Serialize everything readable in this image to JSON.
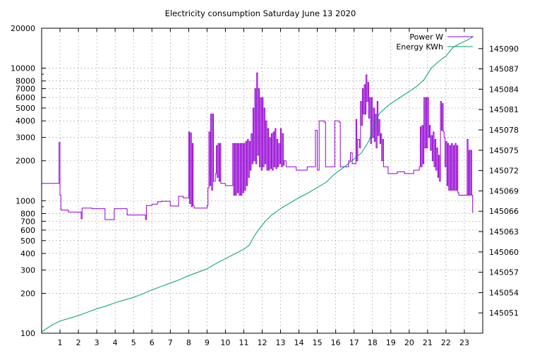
{
  "chart_data": {
    "type": "line",
    "title": "Electricity consumption Saturday June 13 2020",
    "xlabel": "",
    "ylabel": "",
    "y2label": "",
    "xlim": [
      0,
      24
    ],
    "ylim": [
      100,
      20000
    ],
    "y_scale": "log",
    "y2lim": [
      145048,
      145093
    ],
    "grid": true,
    "legend_position": "top-right",
    "x_ticks": [
      1,
      2,
      3,
      4,
      5,
      6,
      7,
      8,
      9,
      10,
      11,
      12,
      13,
      14,
      15,
      16,
      17,
      18,
      19,
      20,
      21,
      22,
      23
    ],
    "y_ticks": [
      {
        "value": 100,
        "label": "100"
      },
      {
        "value": 200,
        "label": "200"
      },
      {
        "value": 300,
        "label": "300"
      },
      {
        "value": 400,
        "label": "400"
      },
      {
        "value": 500,
        "label": "500"
      },
      {
        "value": 600,
        "label": "600"
      },
      {
        "value": 700,
        "label": "700"
      },
      {
        "value": 800,
        "label": "800"
      },
      {
        "value": 1000,
        "label": "1000"
      },
      {
        "value": 2000,
        "label": "2000"
      },
      {
        "value": 3000,
        "label": "3000"
      },
      {
        "value": 4000,
        "label": "4000"
      },
      {
        "value": 5000,
        "label": "5000"
      },
      {
        "value": 6000,
        "label": "6000"
      },
      {
        "value": 7000,
        "label": "7000"
      },
      {
        "value": 8000,
        "label": "8000"
      },
      {
        "value": 10000,
        "label": "10000"
      },
      {
        "value": 20000,
        "label": "20000"
      }
    ],
    "y2_ticks": [
      145051,
      145054,
      145057,
      145060,
      145063,
      145066,
      145069,
      145072,
      145075,
      145078,
      145081,
      145084,
      145087,
      145090
    ],
    "series": [
      {
        "name": "Power W",
        "axis": "y",
        "color": "#9400d3",
        "points": [
          [
            0.0,
            1350
          ],
          [
            0.9,
            1350
          ],
          [
            0.95,
            2750
          ],
          [
            1.0,
            1100
          ],
          [
            1.05,
            850
          ],
          [
            1.4,
            850
          ],
          [
            1.45,
            820
          ],
          [
            2.1,
            820
          ],
          [
            2.15,
            730
          ],
          [
            2.2,
            880
          ],
          [
            2.7,
            880
          ],
          [
            2.75,
            870
          ],
          [
            3.4,
            870
          ],
          [
            3.45,
            720
          ],
          [
            3.9,
            720
          ],
          [
            3.95,
            870
          ],
          [
            4.6,
            870
          ],
          [
            4.65,
            780
          ],
          [
            5.6,
            780
          ],
          [
            5.65,
            720
          ],
          [
            5.7,
            920
          ],
          [
            6.0,
            940
          ],
          [
            6.3,
            980
          ],
          [
            6.5,
            990
          ],
          [
            6.8,
            990
          ],
          [
            7.0,
            910
          ],
          [
            7.4,
            910
          ],
          [
            7.45,
            1080
          ],
          [
            7.7,
            1050
          ],
          [
            7.9,
            1050
          ],
          [
            8.0,
            3300
          ],
          [
            8.05,
            950
          ],
          [
            8.1,
            3250
          ],
          [
            8.15,
            900
          ],
          [
            8.2,
            2700
          ],
          [
            8.25,
            920
          ],
          [
            8.3,
            880
          ],
          [
            8.9,
            880
          ],
          [
            9.0,
            920
          ],
          [
            9.05,
            1250
          ],
          [
            9.1,
            3300
          ],
          [
            9.15,
            1300
          ],
          [
            9.2,
            4500
          ],
          [
            9.25,
            1200
          ],
          [
            9.3,
            4500
          ],
          [
            9.35,
            1400
          ],
          [
            9.45,
            1600
          ],
          [
            9.5,
            2600
          ],
          [
            9.55,
            1500
          ],
          [
            9.6,
            2700
          ],
          [
            9.65,
            1400
          ],
          [
            9.7,
            2700
          ],
          [
            9.75,
            1350
          ],
          [
            10.0,
            1300
          ],
          [
            10.3,
            1300
          ],
          [
            10.4,
            2700
          ],
          [
            10.45,
            1100
          ],
          [
            10.5,
            2700
          ],
          [
            10.55,
            1100
          ],
          [
            10.6,
            2700
          ],
          [
            10.65,
            1150
          ],
          [
            10.7,
            2700
          ],
          [
            10.75,
            1100
          ],
          [
            10.8,
            2700
          ],
          [
            10.85,
            1100
          ],
          [
            10.9,
            2700
          ],
          [
            10.95,
            1150
          ],
          [
            11.0,
            2700
          ],
          [
            11.05,
            1200
          ],
          [
            11.1,
            2800
          ],
          [
            11.15,
            1300
          ],
          [
            11.2,
            2900
          ],
          [
            11.25,
            1500
          ],
          [
            11.3,
            2800
          ],
          [
            11.35,
            1700
          ],
          [
            11.4,
            3200
          ],
          [
            11.45,
            1900
          ],
          [
            11.5,
            5000
          ],
          [
            11.55,
            2000
          ],
          [
            11.6,
            7000
          ],
          [
            11.65,
            1900
          ],
          [
            11.7,
            9200
          ],
          [
            11.75,
            2200
          ],
          [
            11.8,
            7000
          ],
          [
            11.85,
            1800
          ],
          [
            11.9,
            6000
          ],
          [
            11.95,
            1700
          ],
          [
            12.0,
            6000
          ],
          [
            12.05,
            1800
          ],
          [
            12.1,
            5000
          ],
          [
            12.15,
            1900
          ],
          [
            12.2,
            4000
          ],
          [
            12.25,
            1700
          ],
          [
            12.3,
            3500
          ],
          [
            12.35,
            1700
          ],
          [
            12.4,
            3000
          ],
          [
            12.45,
            1750
          ],
          [
            12.5,
            3200
          ],
          [
            12.55,
            1700
          ],
          [
            12.6,
            3300
          ],
          [
            12.65,
            1800
          ],
          [
            12.7,
            3500
          ],
          [
            12.75,
            1750
          ],
          [
            12.8,
            2900
          ],
          [
            12.85,
            1800
          ],
          [
            12.9,
            2700
          ],
          [
            12.95,
            1900
          ],
          [
            13.0,
            3500
          ],
          [
            13.05,
            1800
          ],
          [
            13.1,
            3200
          ],
          [
            13.15,
            1850
          ],
          [
            13.2,
            2000
          ],
          [
            13.3,
            1800
          ],
          [
            13.8,
            1800
          ],
          [
            13.85,
            1700
          ],
          [
            14.4,
            1700
          ],
          [
            14.45,
            1800
          ],
          [
            14.8,
            1800
          ],
          [
            14.9,
            3400
          ],
          [
            15.0,
            1700
          ],
          [
            15.1,
            4000
          ],
          [
            15.4,
            3900
          ],
          [
            15.45,
            1800
          ],
          [
            15.9,
            1800
          ],
          [
            15.95,
            4000
          ],
          [
            16.2,
            3900
          ],
          [
            16.25,
            1800
          ],
          [
            16.6,
            1800
          ],
          [
            16.7,
            2000
          ],
          [
            16.8,
            2300
          ],
          [
            16.9,
            1900
          ],
          [
            17.05,
            1900
          ],
          [
            17.1,
            4100
          ],
          [
            17.15,
            2000
          ],
          [
            17.2,
            2900
          ],
          [
            17.3,
            2500
          ],
          [
            17.35,
            5600
          ],
          [
            17.4,
            3700
          ],
          [
            17.45,
            7000
          ],
          [
            17.5,
            4500
          ],
          [
            17.55,
            7500
          ],
          [
            17.6,
            4500
          ],
          [
            17.65,
            8900
          ],
          [
            17.7,
            5600
          ],
          [
            17.75,
            7800
          ],
          [
            17.8,
            4200
          ],
          [
            17.85,
            6000
          ],
          [
            17.9,
            2700
          ],
          [
            17.95,
            6000
          ],
          [
            18.0,
            3000
          ],
          [
            18.05,
            5000
          ],
          [
            18.1,
            2800
          ],
          [
            18.15,
            4500
          ],
          [
            18.2,
            2500
          ],
          [
            18.25,
            5600
          ],
          [
            18.3,
            3100
          ],
          [
            18.35,
            4100
          ],
          [
            18.4,
            2700
          ],
          [
            18.45,
            3200
          ],
          [
            18.5,
            2000
          ],
          [
            18.55,
            2900
          ],
          [
            18.6,
            1800
          ],
          [
            18.8,
            1800
          ],
          [
            18.85,
            1600
          ],
          [
            19.3,
            1600
          ],
          [
            19.35,
            1650
          ],
          [
            19.7,
            1650
          ],
          [
            19.75,
            1600
          ],
          [
            20.2,
            1600
          ],
          [
            20.25,
            1700
          ],
          [
            20.5,
            1700
          ],
          [
            20.55,
            1800
          ],
          [
            20.6,
            3600
          ],
          [
            20.65,
            1800
          ],
          [
            20.7,
            3700
          ],
          [
            20.75,
            1900
          ],
          [
            20.8,
            6000
          ],
          [
            20.85,
            2500
          ],
          [
            20.9,
            6000
          ],
          [
            20.95,
            2500
          ],
          [
            21.0,
            6000
          ],
          [
            21.05,
            3000
          ],
          [
            21.1,
            3700
          ],
          [
            21.15,
            2400
          ],
          [
            21.2,
            3100
          ],
          [
            21.25,
            2000
          ],
          [
            21.3,
            3300
          ],
          [
            21.35,
            1800
          ],
          [
            21.4,
            2900
          ],
          [
            21.45,
            1700
          ],
          [
            21.5,
            2500
          ],
          [
            21.55,
            1500
          ],
          [
            21.6,
            2200
          ],
          [
            21.65,
            1400
          ],
          [
            21.7,
            5600
          ],
          [
            21.75,
            3400
          ],
          [
            21.8,
            5400
          ],
          [
            21.85,
            3300
          ],
          [
            21.9,
            3000
          ],
          [
            21.95,
            1800
          ],
          [
            22.0,
            2800
          ],
          [
            22.05,
            1300
          ],
          [
            22.1,
            2700
          ],
          [
            22.15,
            1200
          ],
          [
            22.2,
            2600
          ],
          [
            22.25,
            1200
          ],
          [
            22.3,
            2700
          ],
          [
            22.35,
            1200
          ],
          [
            22.4,
            2600
          ],
          [
            22.45,
            1200
          ],
          [
            22.5,
            2700
          ],
          [
            22.55,
            1200
          ],
          [
            22.6,
            2600
          ],
          [
            22.65,
            1150
          ],
          [
            22.7,
            1100
          ],
          [
            22.8,
            1100
          ],
          [
            23.0,
            1100
          ],
          [
            23.1,
            1100
          ],
          [
            23.15,
            2900
          ],
          [
            23.2,
            1100
          ],
          [
            23.25,
            2400
          ],
          [
            23.3,
            1100
          ],
          [
            23.35,
            2400
          ],
          [
            23.4,
            1100
          ],
          [
            23.45,
            820
          ],
          [
            23.5,
            820
          ]
        ]
      },
      {
        "name": "Energy KWh",
        "axis": "y2",
        "color": "#009e73",
        "points": [
          [
            0.0,
            145048.2
          ],
          [
            0.5,
            145049.1
          ],
          [
            1.0,
            145049.8
          ],
          [
            1.5,
            145050.2
          ],
          [
            2.0,
            145050.6
          ],
          [
            2.5,
            145051.1
          ],
          [
            3.0,
            145051.6
          ],
          [
            3.5,
            145052.0
          ],
          [
            4.0,
            145052.5
          ],
          [
            4.5,
            145052.9
          ],
          [
            5.0,
            145053.3
          ],
          [
            5.5,
            145053.8
          ],
          [
            6.0,
            145054.4
          ],
          [
            6.5,
            145054.9
          ],
          [
            7.0,
            145055.4
          ],
          [
            7.5,
            145055.9
          ],
          [
            8.0,
            145056.5
          ],
          [
            8.5,
            145057.0
          ],
          [
            9.0,
            145057.5
          ],
          [
            9.5,
            145058.3
          ],
          [
            10.0,
            145059.0
          ],
          [
            10.5,
            145059.7
          ],
          [
            11.0,
            145060.4
          ],
          [
            11.3,
            145061.0
          ],
          [
            11.6,
            145062.5
          ],
          [
            11.9,
            145063.6
          ],
          [
            12.2,
            145064.6
          ],
          [
            12.5,
            145065.4
          ],
          [
            13.0,
            145066.4
          ],
          [
            13.5,
            145067.2
          ],
          [
            14.0,
            145068.0
          ],
          [
            14.5,
            145068.7
          ],
          [
            15.0,
            145069.5
          ],
          [
            15.5,
            145070.3
          ],
          [
            15.9,
            145071.4
          ],
          [
            16.4,
            145072.4
          ],
          [
            16.9,
            145073.5
          ],
          [
            17.4,
            145074.6
          ],
          [
            17.8,
            145076.3
          ],
          [
            18.1,
            145078.8
          ],
          [
            18.4,
            145080.5
          ],
          [
            18.9,
            145081.7
          ],
          [
            19.4,
            145082.6
          ],
          [
            19.9,
            145083.5
          ],
          [
            20.4,
            145084.4
          ],
          [
            20.8,
            145085.4
          ],
          [
            21.2,
            145087.1
          ],
          [
            21.6,
            145088.1
          ],
          [
            22.0,
            145088.9
          ],
          [
            22.4,
            145090.2
          ],
          [
            22.8,
            145090.8
          ],
          [
            23.2,
            145091.3
          ],
          [
            23.5,
            145091.8
          ]
        ]
      }
    ]
  }
}
